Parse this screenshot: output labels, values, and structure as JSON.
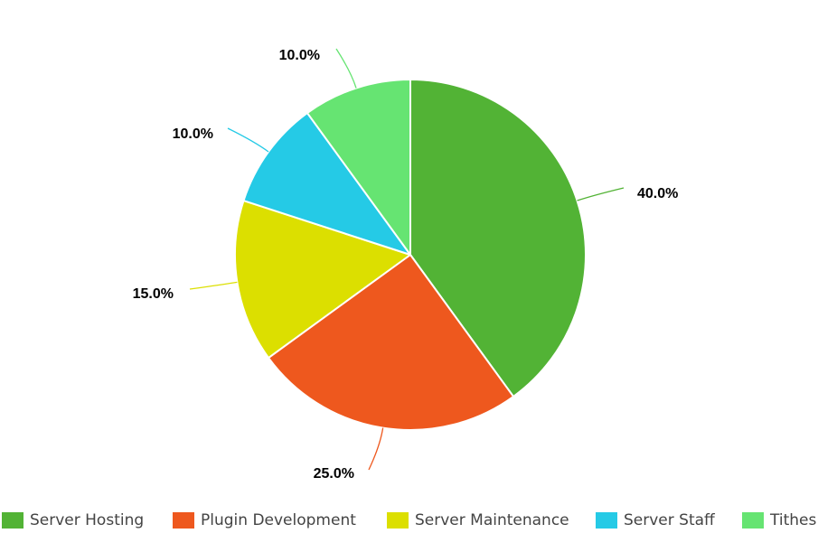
{
  "chart_data": {
    "type": "pie",
    "title": "",
    "categories": [
      "Server Hosting",
      "Plugin Development",
      "Server Maintenance",
      "Server Staff",
      "Tithes"
    ],
    "values": [
      40.0,
      25.0,
      15.0,
      10.0,
      10.0
    ],
    "labels": [
      "40.0%",
      "25.0%",
      "15.0%",
      "10.0%",
      "10.0%"
    ],
    "colors": [
      "#52b335",
      "#ee581e",
      "#dcdf00",
      "#25cae6",
      "#66e472"
    ],
    "legend_position": "bottom",
    "start_angle": "top",
    "direction": "clockwise"
  }
}
